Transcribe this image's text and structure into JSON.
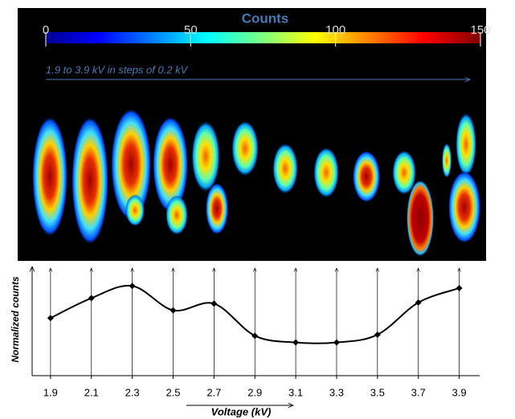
{
  "chart_data": [
    {
      "type": "colorbar",
      "title": "Counts",
      "annotation": "1.9 to 3.9 kV in steps of 0.2 kV",
      "colormap": "jet",
      "lim": [
        0,
        150
      ],
      "ticks": [
        0,
        50,
        100,
        150
      ]
    },
    {
      "type": "line",
      "x": [
        1.9,
        2.1,
        2.3,
        2.5,
        2.7,
        2.9,
        3.1,
        3.3,
        3.5,
        3.7,
        3.9
      ],
      "values": [
        0.52,
        0.7,
        0.81,
        0.59,
        0.65,
        0.36,
        0.3,
        0.3,
        0.37,
        0.66,
        0.79
      ],
      "color": "#000000",
      "xlim": [
        1.81,
        4.0
      ],
      "ylim": [
        0,
        1
      ],
      "xticks": [
        1.9,
        2.1,
        2.3,
        2.5,
        2.7,
        2.9,
        3.1,
        3.3,
        3.5,
        3.7,
        3.9
      ],
      "xlabel": "Voltage (kV)",
      "ylabel": "Normalized counts"
    }
  ]
}
